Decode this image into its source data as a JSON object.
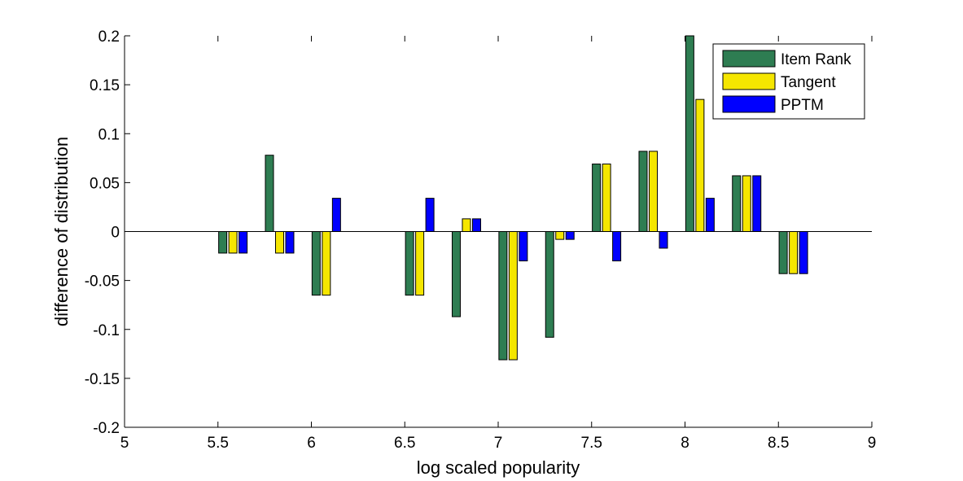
{
  "chart_data": {
    "type": "bar",
    "xlabel": "log scaled popularity",
    "ylabel": "difference of distribution",
    "xlim": [
      5,
      9
    ],
    "ylim": [
      -0.2,
      0.2
    ],
    "xticks": [
      5,
      5.5,
      6,
      6.5,
      7,
      7.5,
      8,
      8.5,
      9
    ],
    "xtick_labels": [
      "5",
      "5.5",
      "6",
      "6.5",
      "7",
      "7.5",
      "8",
      "8.5",
      "9"
    ],
    "yticks": [
      -0.2,
      -0.15,
      -0.1,
      -0.05,
      0,
      0.05,
      0.1,
      0.15,
      0.2
    ],
    "ytick_labels": [
      "-0.2",
      "-0.15",
      "-0.1",
      "-0.05",
      "0",
      "0.05",
      "0.1",
      "0.15",
      "0.2"
    ],
    "grid": false,
    "legend_position": "top-right",
    "bin_width": 0.25,
    "series": [
      {
        "name": "Item Rank",
        "color": "#2e7d52",
        "points": [
          {
            "x": 5.58,
            "y": -0.022
          },
          {
            "x": 5.83,
            "y": 0.078
          },
          {
            "x": 6.08,
            "y": -0.065
          },
          {
            "x": 6.58,
            "y": -0.065
          },
          {
            "x": 6.83,
            "y": -0.087
          },
          {
            "x": 7.08,
            "y": -0.131
          },
          {
            "x": 7.33,
            "y": -0.108
          },
          {
            "x": 7.58,
            "y": 0.069
          },
          {
            "x": 7.83,
            "y": 0.082
          },
          {
            "x": 8.08,
            "y": 0.2
          },
          {
            "x": 8.33,
            "y": 0.057
          },
          {
            "x": 8.58,
            "y": -0.043
          }
        ]
      },
      {
        "name": "Tangent",
        "color": "#f5e600",
        "points": [
          {
            "x": 5.58,
            "y": -0.022
          },
          {
            "x": 5.83,
            "y": -0.022
          },
          {
            "x": 6.08,
            "y": -0.065
          },
          {
            "x": 6.58,
            "y": -0.065
          },
          {
            "x": 6.83,
            "y": 0.013
          },
          {
            "x": 7.08,
            "y": -0.131
          },
          {
            "x": 7.33,
            "y": -0.008
          },
          {
            "x": 7.58,
            "y": 0.069
          },
          {
            "x": 7.83,
            "y": 0.082
          },
          {
            "x": 8.08,
            "y": 0.135
          },
          {
            "x": 8.33,
            "y": 0.057
          },
          {
            "x": 8.58,
            "y": -0.043
          }
        ]
      },
      {
        "name": "PPTM",
        "color": "#0000ff",
        "points": [
          {
            "x": 5.58,
            "y": -0.022
          },
          {
            "x": 5.83,
            "y": -0.022
          },
          {
            "x": 6.08,
            "y": 0.034
          },
          {
            "x": 6.58,
            "y": 0.034
          },
          {
            "x": 6.83,
            "y": 0.013
          },
          {
            "x": 7.08,
            "y": -0.03
          },
          {
            "x": 7.33,
            "y": -0.008
          },
          {
            "x": 7.58,
            "y": -0.03
          },
          {
            "x": 7.83,
            "y": -0.017
          },
          {
            "x": 8.08,
            "y": 0.034
          },
          {
            "x": 8.33,
            "y": 0.057
          },
          {
            "x": 8.58,
            "y": -0.043
          }
        ]
      }
    ]
  }
}
